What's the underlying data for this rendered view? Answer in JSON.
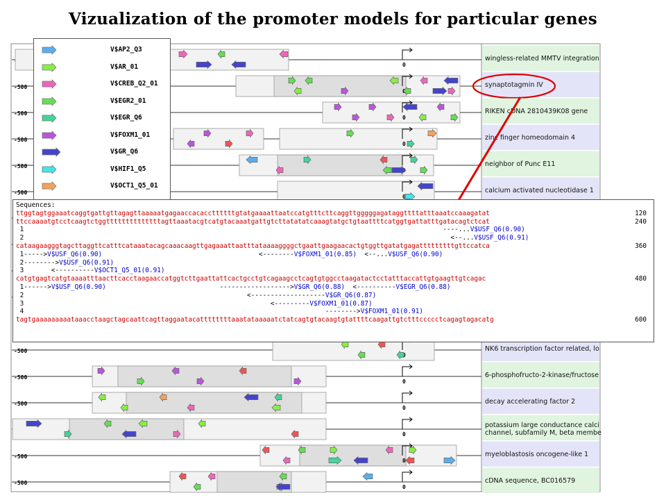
{
  "title": "Vizualization of the promoter models for particular genes",
  "colors": {
    "AP2": "#5aaeef",
    "AR": "#88ee44",
    "CREB": "#ee66bb",
    "EGR2": "#66dd55",
    "EGR6": "#44d49a",
    "FOXM1": "#bb55dd",
    "GR": "#4444cc",
    "HIF1": "#44e4e8",
    "OCT1": "#f4a25a",
    "USF": "#ee5555",
    "highlight": "#dd0000"
  },
  "legend": [
    {
      "label": "V$AP2_Q3",
      "color": "#5aaeef",
      "icon": "arrow-icon"
    },
    {
      "label": "V$AR_01",
      "color": "#88ee44",
      "icon": "arrow-icon"
    },
    {
      "label": "V$CREB_Q2_01",
      "color": "#ee66bb",
      "icon": "arrow-icon"
    },
    {
      "label": "V$EGR2_01",
      "color": "#66dd55",
      "icon": "arrow-icon"
    },
    {
      "label": "V$EGR_Q6",
      "color": "#44d49a",
      "icon": "arrow-icon"
    },
    {
      "label": "V$FOXM1_01",
      "color": "#bb55dd",
      "icon": "arrow-icon"
    },
    {
      "label": "V$GR_Q6",
      "color": "#4444cc",
      "icon": "arrow-icon"
    },
    {
      "label": "V$HIF1_Q5",
      "color": "#44e4e8",
      "icon": "arrow-icon"
    },
    {
      "label": "V$OCT1_Q5_01",
      "color": "#f4a25a",
      "icon": "arrow-icon"
    }
  ],
  "tss_label": "0",
  "start_label": "-500",
  "rows": [
    {
      "label": "wingless-related MMTV integration",
      "bg": "#e0f4e0"
    },
    {
      "label": "synaptotagmin IV",
      "bg": "#e4e4f8",
      "highlighted": true
    },
    {
      "label": "RIKEN cDNA 2810439K08 gene",
      "bg": "#e0f4e0"
    },
    {
      "label": "zinc finger homeodomain 4",
      "bg": "#e4e4f8"
    },
    {
      "label": "neighbor of Punc E11",
      "bg": "#e0f4e0"
    },
    {
      "label": "calcium activated nucleotidase 1",
      "bg": "#e4e4f8"
    },
    {
      "label": "",
      "bg": "#e0f4e0"
    },
    {
      "label": "",
      "bg": "#e4e4f8"
    },
    {
      "label": "",
      "bg": "#e0f4e0"
    },
    {
      "label": "",
      "bg": "#e4e4f8"
    },
    {
      "label": "NK6 transcription factor related, lo",
      "bg": "#e4e4f8"
    },
    {
      "label": "6-phosphofructo-2-kinase/fructose",
      "bg": "#e0f4e0"
    },
    {
      "label": "decay accelerating factor 2",
      "bg": "#e4e4f8"
    },
    {
      "label": "potassium large conductance calci channel, subfamily M, beta membe",
      "bg": "#e0f4e0"
    },
    {
      "label": "myeloblastosis oncogene-like 1",
      "bg": "#e4e4f8"
    },
    {
      "label": "cDNA sequence, BC016579",
      "bg": "#e0f4e0"
    }
  ],
  "sequences": {
    "header": "Sequences:",
    "lines": [
      {
        "seq": "ttggtagtggaaatcaggtgattgttagagttaaaaatgagaaccacaccttttttgtatgaaaattaatccatgtttcttcaggttgggggagataggttttatttaaatccaaagatat",
        "pos": "120",
        "ann": []
      },
      {
        "seq": "ttccaaaatgtcctcaagtctggttttttttttttttagttaaatacgtcatgtacaaatgattgtcttatatatcaaagtatgctgtaattttcatggtgattatttgatacagtctcat",
        "pos": "240",
        "ann": [
          {
            "num": "1",
            "pre": "                                                                                                           ----...",
            "site": "V$USF_Q6(0.90)"
          },
          {
            "num": "2",
            "pre": "                                                                                                             <--...",
            "site": "V$USF_Q6(0.91)"
          }
        ]
      },
      {
        "seq": "cataagaagggtagcttaggttcatttcataaatacagcaaacaagttgagaaattaatttataaaaggggctgaattgaagaacactgtggttgatatgagatttttttttgttccatca",
        "pos": "360",
        "ann": [
          {
            "num": "1",
            "pre": "----->",
            "site": "V$USF_Q6(0.90)",
            "post": "                                        <--------",
            "site2": "V$FOXM1_01(0.85)",
            "post2": "  <--...",
            "site3": "V$USF_Q6(0.90)"
          },
          {
            "num": "2",
            "pre": "-------->",
            "site": "V$USF_Q6(0.91)"
          },
          {
            "num": "3",
            "pre": "       <----------",
            "site": "V$OCT1_Q5_01(0.91)"
          }
        ]
      },
      {
        "seq": "catgtgagtcatgtaaaatttaacttcacctaagaaccatggtcttgaattattcactgcctgtcagaagcctcagtgtggcctaagatactcctatttaccattgtgaagttgtcagac",
        "pos": "480",
        "ann": [
          {
            "num": "1",
            "pre": "------>",
            "site": "V$USF_Q6(0.90)",
            "post": "                             ------------------>",
            "site2": "V$GR_Q6(0.88)",
            "post2": "  <----------",
            "site3": "V$EGR_Q6(0.88)"
          },
          {
            "num": "2",
            "pre": "                                                         <-------------------",
            "site": "V$GR_Q6(0.87)"
          },
          {
            "num": "3",
            "pre": "                                                               <---------",
            "site": "V$FOXM1_01(0.87)"
          },
          {
            "num": "4",
            "pre": "                                                                             -------->",
            "site": "V$FOXM1_01(0.91)"
          }
        ]
      },
      {
        "seq": "tagtgaaaaaaaaataaacctaagctagcaattcagttaggaatacattttttttaaatataaaaatctatcagtgtacaagtgtattttcaagattgtctttccccctcagagtagacatg",
        "pos": "600",
        "ann": []
      }
    ]
  }
}
